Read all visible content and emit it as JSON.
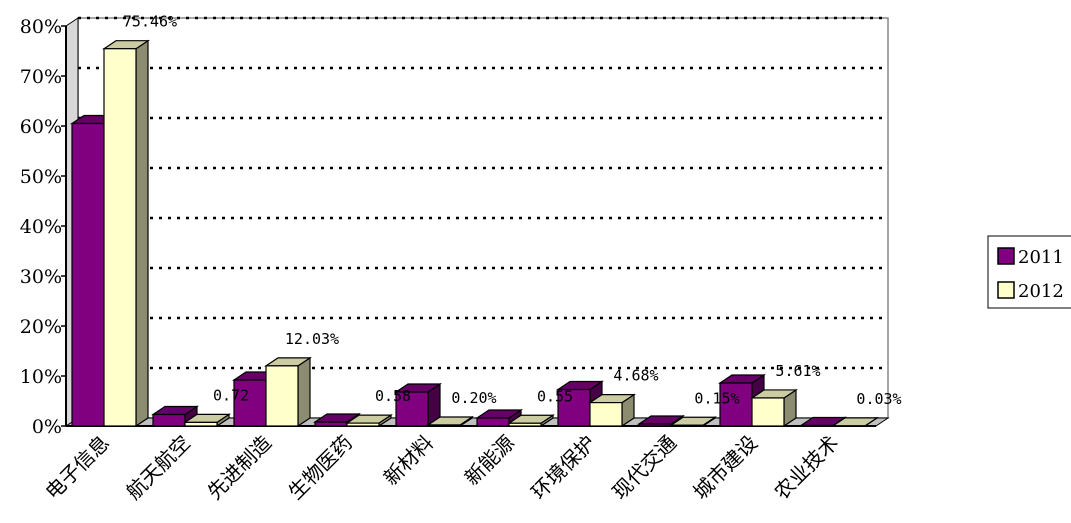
{
  "chart_data": {
    "type": "bar",
    "title": "",
    "xlabel": "",
    "ylabel": "",
    "categories": [
      "电子信息",
      "航天航空",
      "先进制造",
      "生物医药",
      "新材料",
      "新能源",
      "环境保护",
      "现代交通",
      "城市建设",
      "农业技术"
    ],
    "series": [
      {
        "name": "2011",
        "color": "#800080",
        "values": [
          60.5,
          2.3,
          9.2,
          0.8,
          6.8,
          1.6,
          7.3,
          0.4,
          8.6,
          0.1
        ]
      },
      {
        "name": "2012",
        "color": "#FFFFCC",
        "values": [
          75.46,
          0.72,
          12.03,
          0.58,
          0.2,
          0.55,
          4.68,
          0.15,
          5.61,
          0.03
        ]
      }
    ],
    "data_labels": [
      {
        "category": "电子信息",
        "text": "75.46%"
      },
      {
        "category": "航天航空",
        "text": "0.72"
      },
      {
        "category": "先进制造",
        "text": "12.03%"
      },
      {
        "category": "生物医药",
        "text": "0.58"
      },
      {
        "category": "新材料",
        "text": "0.20%"
      },
      {
        "category": "新能源",
        "text": "0.55"
      },
      {
        "category": "环境保护",
        "text": "4.68%"
      },
      {
        "category": "现代交通",
        "text": "0.15%"
      },
      {
        "category": "城市建设",
        "text": "5.61%"
      },
      {
        "category": "农业技术",
        "text": "0.03%"
      }
    ],
    "y_ticks": [
      "0%",
      "10%",
      "20%",
      "30%",
      "40%",
      "50%",
      "60%",
      "70%",
      "80%"
    ],
    "ylim": [
      0,
      80
    ],
    "grid": "dotted horizontal",
    "legend": "right",
    "style": "3d"
  }
}
